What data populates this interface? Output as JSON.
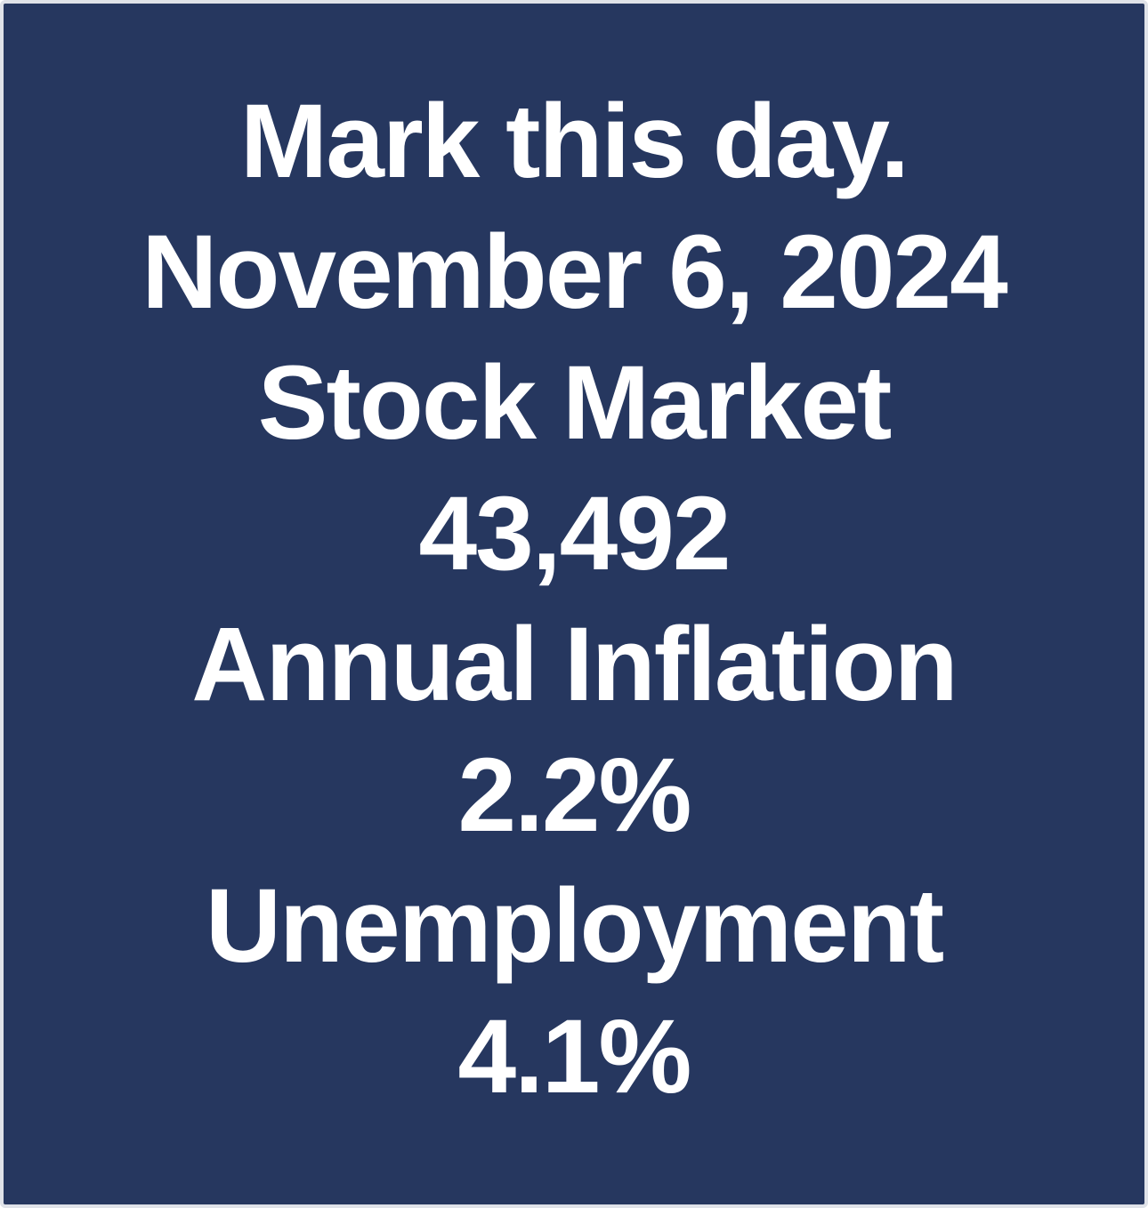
{
  "background_color": "#26375f",
  "text_color": "#ffffff",
  "lines": [
    "Mark this day.",
    "November 6, 2024",
    "Stock Market",
    "43,492",
    "Annual Inflation",
    "2.2%",
    "Unemployment",
    "4.1%"
  ]
}
